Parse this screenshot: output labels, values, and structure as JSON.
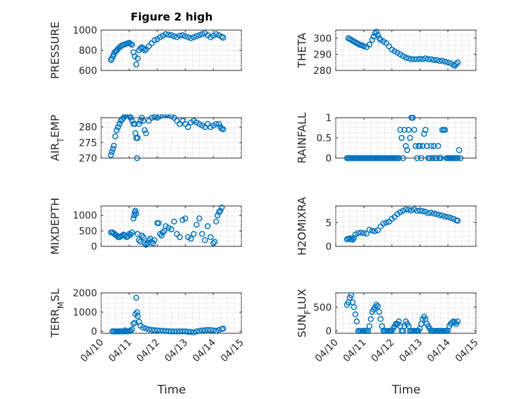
{
  "figure": {
    "title": "Figure 2 high",
    "xlabel": "Time",
    "x_tick_labels": [
      "04/10",
      "04/11",
      "04/12",
      "04/13",
      "04/14",
      "04/15"
    ],
    "marker_color": "#0072bd"
  },
  "chart_data": [
    {
      "type": "scatter",
      "ylabel": "PRESSURE",
      "ylim": [
        600,
        1000
      ],
      "yticks": [
        600,
        800,
        1000
      ],
      "xlim": [
        0,
        5
      ],
      "grid": true,
      "x": [
        0.35,
        0.38,
        0.42,
        0.45,
        0.48,
        0.52,
        0.56,
        0.6,
        0.65,
        0.7,
        0.75,
        0.8,
        0.85,
        0.9,
        0.95,
        1.0,
        1.05,
        1.1,
        1.15,
        1.2,
        1.25,
        1.3,
        1.35,
        1.4,
        1.45,
        1.5,
        1.55,
        1.6,
        1.7,
        1.8,
        1.9,
        2.0,
        2.1,
        2.2,
        2.3,
        2.4,
        2.5,
        2.6,
        2.7,
        2.8,
        2.9,
        3.0,
        3.1,
        3.2,
        3.3,
        3.4,
        3.5,
        3.6,
        3.7,
        3.8,
        3.9,
        4.0,
        4.1,
        4.2,
        4.3,
        4.35
      ],
      "y": [
        705,
        720,
        740,
        760,
        780,
        790,
        800,
        815,
        830,
        840,
        850,
        855,
        860,
        865,
        870,
        875,
        865,
        855,
        780,
        740,
        660,
        720,
        800,
        820,
        830,
        820,
        800,
        810,
        840,
        870,
        900,
        910,
        930,
        945,
        960,
        955,
        950,
        940,
        930,
        945,
        950,
        940,
        930,
        920,
        930,
        940,
        950,
        960,
        970,
        950,
        930,
        945,
        960,
        950,
        935,
        925
      ]
    },
    {
      "type": "scatter",
      "ylabel": "THETA",
      "ylim": [
        280,
        305
      ],
      "yticks": [
        280,
        290,
        300
      ],
      "xlim": [
        0,
        5
      ],
      "grid": true,
      "x": [
        0.45,
        0.5,
        0.55,
        0.6,
        0.65,
        0.7,
        0.75,
        0.8,
        0.85,
        0.9,
        0.95,
        1.0,
        1.1,
        1.2,
        1.3,
        1.35,
        1.4,
        1.45,
        1.5,
        1.55,
        1.6,
        1.7,
        1.8,
        1.9,
        2.0,
        2.1,
        2.2,
        2.3,
        2.4,
        2.5,
        2.6,
        2.7,
        2.8,
        2.9,
        3.0,
        3.1,
        3.2,
        3.3,
        3.4,
        3.5,
        3.6,
        3.7,
        3.8,
        3.9,
        4.0,
        4.1,
        4.2,
        4.25,
        4.3,
        4.35
      ],
      "y": [
        300,
        299.5,
        299,
        298.5,
        298,
        297.5,
        297,
        296.5,
        296,
        295.8,
        295.5,
        295,
        294.5,
        296,
        299,
        301,
        303,
        304,
        302,
        300,
        299,
        298,
        297,
        295,
        293,
        292,
        291,
        290,
        289,
        288,
        287.5,
        287,
        287,
        287,
        287.2,
        287,
        287.5,
        287,
        287,
        286.5,
        286.5,
        286,
        286,
        285.5,
        285,
        284.5,
        283.5,
        283,
        284,
        285
      ]
    },
    {
      "type": "scatter",
      "ylabel": "AIR_TEMP",
      "ylim": [
        270,
        283
      ],
      "yticks": [
        270,
        275,
        280
      ],
      "xlim": [
        0,
        5
      ],
      "grid": true,
      "x": [
        0.35,
        0.38,
        0.42,
        0.45,
        0.5,
        0.55,
        0.6,
        0.65,
        0.7,
        0.75,
        0.8,
        0.85,
        0.9,
        0.95,
        1.0,
        1.05,
        1.1,
        1.15,
        1.2,
        1.22,
        1.25,
        1.28,
        1.3,
        1.35,
        1.4,
        1.45,
        1.5,
        1.55,
        1.6,
        1.7,
        1.8,
        1.9,
        2.0,
        2.1,
        2.2,
        2.3,
        2.4,
        2.5,
        2.6,
        2.7,
        2.8,
        2.9,
        3.0,
        3.1,
        3.2,
        3.3,
        3.4,
        3.5,
        3.6,
        3.7,
        3.8,
        3.9,
        4.0,
        4.1,
        4.2,
        4.25,
        4.3,
        4.35
      ],
      "y": [
        271,
        272,
        273,
        274,
        277,
        279,
        280,
        281,
        282,
        282.5,
        283,
        283.5,
        283.8,
        284,
        283.5,
        283,
        282,
        281,
        281,
        278,
        276.5,
        270,
        276.5,
        281,
        282,
        283,
        282,
        279,
        278,
        282,
        283,
        283.2,
        283,
        283.5,
        283.8,
        284,
        284,
        283.5,
        283,
        282,
        281,
        282,
        281,
        280,
        281.5,
        282,
        281.5,
        281,
        280.5,
        280,
        281,
        280,
        280.5,
        281,
        281,
        280,
        279.5,
        279.3
      ]
    },
    {
      "type": "scatter",
      "ylabel": "RAINFALL",
      "ylim": [
        0,
        1
      ],
      "yticks": [
        0,
        0.5,
        1
      ],
      "xlim": [
        0,
        5
      ],
      "grid": true,
      "x": [
        0.4,
        0.45,
        0.5,
        0.55,
        0.6,
        0.65,
        0.7,
        0.75,
        0.8,
        0.85,
        0.9,
        0.95,
        1.0,
        1.05,
        1.1,
        1.15,
        1.2,
        1.25,
        1.3,
        1.35,
        1.4,
        1.45,
        1.5,
        1.55,
        1.6,
        1.65,
        1.7,
        1.75,
        1.8,
        1.85,
        1.9,
        1.95,
        2.0,
        2.05,
        2.1,
        2.15,
        2.2,
        2.25,
        2.3,
        2.35,
        2.4,
        2.45,
        2.5,
        2.55,
        2.6,
        2.65,
        2.7,
        2.75,
        2.8,
        2.85,
        2.9,
        2.95,
        3.0,
        3.05,
        3.1,
        3.15,
        3.2,
        3.25,
        3.3,
        3.35,
        3.4,
        3.45,
        3.5,
        3.55,
        3.6,
        3.65,
        3.7,
        3.75,
        3.8,
        3.85,
        3.9,
        3.95,
        4.0,
        4.05,
        4.1,
        4.15,
        4.2,
        4.25,
        4.3,
        4.35,
        4.4,
        4.45
      ],
      "y": [
        0,
        0,
        0,
        0,
        0,
        0,
        0,
        0,
        0,
        0,
        0,
        0,
        0,
        0,
        0,
        0,
        0,
        0,
        0,
        0,
        0,
        0,
        0,
        0,
        0,
        0,
        0,
        0,
        0,
        0,
        0,
        0,
        0,
        0,
        0,
        0,
        0,
        0,
        0.7,
        0.5,
        0,
        0.7,
        0.3,
        0.2,
        0.7,
        0.5,
        1,
        1,
        0.7,
        0.3,
        0,
        0.3,
        0.3,
        0,
        0.3,
        0.6,
        0.7,
        0.3,
        0,
        0,
        0.3,
        0,
        0.3,
        0,
        0,
        0.3,
        0,
        0,
        0.7,
        0.7,
        0.7,
        0,
        0,
        0,
        0,
        0,
        0,
        0,
        0,
        0,
        0.2,
        0
      ]
    },
    {
      "type": "scatter",
      "ylabel": "MIXDEPTH",
      "ylim": [
        0,
        1300
      ],
      "yticks": [
        0,
        500,
        1000
      ],
      "xlim": [
        0,
        5
      ],
      "grid": true,
      "x": [
        0.35,
        0.4,
        0.45,
        0.5,
        0.55,
        0.6,
        0.65,
        0.7,
        0.75,
        0.8,
        0.85,
        0.9,
        0.95,
        1.0,
        1.05,
        1.1,
        1.15,
        1.18,
        1.2,
        1.22,
        1.25,
        1.3,
        1.35,
        1.4,
        1.45,
        1.5,
        1.55,
        1.6,
        1.65,
        1.7,
        1.75,
        1.8,
        1.85,
        1.9,
        2.0,
        2.05,
        2.1,
        2.15,
        2.2,
        2.25,
        2.3,
        2.4,
        2.5,
        2.6,
        2.7,
        2.8,
        2.9,
        3.0,
        3.1,
        3.2,
        3.3,
        3.4,
        3.5,
        3.6,
        3.7,
        3.8,
        3.9,
        4.0,
        4.05,
        4.1,
        4.15,
        4.2,
        4.25,
        4.3
      ],
      "y": [
        450,
        450,
        420,
        380,
        350,
        300,
        300,
        320,
        350,
        380,
        350,
        300,
        320,
        400,
        380,
        450,
        900,
        1000,
        1100,
        1150,
        1050,
        400,
        200,
        150,
        350,
        300,
        100,
        50,
        100,
        200,
        250,
        150,
        100,
        200,
        750,
        750,
        400,
        350,
        450,
        500,
        650,
        600,
        550,
        800,
        400,
        300,
        850,
        900,
        300,
        250,
        400,
        700,
        900,
        400,
        200,
        650,
        300,
        100,
        150,
        800,
        1000,
        1100,
        1150,
        1250
      ]
    },
    {
      "type": "scatter",
      "ylabel": "H2OMIXRA",
      "ylim": [
        0,
        8.5
      ],
      "yticks": [
        0,
        5
      ],
      "xlim": [
        0,
        5
      ],
      "grid": true,
      "x": [
        0.4,
        0.45,
        0.5,
        0.55,
        0.6,
        0.65,
        0.7,
        0.8,
        0.9,
        1.0,
        1.1,
        1.2,
        1.3,
        1.4,
        1.5,
        1.6,
        1.7,
        1.8,
        1.9,
        2.0,
        2.1,
        2.2,
        2.3,
        2.4,
        2.5,
        2.6,
        2.7,
        2.8,
        2.9,
        3.0,
        3.1,
        3.2,
        3.3,
        3.4,
        3.5,
        3.6,
        3.7,
        3.8,
        3.9,
        4.0,
        4.1,
        4.2,
        4.3,
        4.35
      ],
      "y": [
        1.5,
        1.6,
        1.7,
        1.5,
        1.4,
        1.8,
        2.5,
        2.8,
        2.9,
        2.8,
        2.7,
        3.5,
        3.3,
        3.2,
        3.4,
        4.2,
        4.8,
        5.0,
        5.2,
        5.8,
        6.2,
        6.8,
        7.2,
        7.5,
        7.8,
        7.7,
        7.6,
        7.8,
        7.5,
        7.5,
        7.4,
        7.3,
        7.0,
        7.1,
        6.9,
        6.8,
        6.6,
        6.5,
        6.3,
        6.2,
        6.0,
        5.8,
        5.5,
        5.4
      ]
    },
    {
      "type": "scatter",
      "ylabel": "TERR_MSL",
      "ylim": [
        -100,
        2000
      ],
      "yticks": [
        0,
        1000,
        2000
      ],
      "xlim": [
        0,
        5
      ],
      "grid": true,
      "x": [
        0.4,
        0.45,
        0.5,
        0.55,
        0.6,
        0.65,
        0.7,
        0.75,
        0.8,
        0.85,
        0.9,
        0.95,
        1.0,
        1.05,
        1.1,
        1.15,
        1.2,
        1.22,
        1.25,
        1.28,
        1.3,
        1.35,
        1.4,
        1.5,
        1.6,
        1.7,
        1.8,
        1.9,
        2.0,
        2.1,
        2.2,
        2.3,
        2.4,
        2.5,
        2.6,
        2.7,
        2.8,
        2.9,
        3.0,
        3.1,
        3.2,
        3.3,
        3.4,
        3.5,
        3.6,
        3.7,
        3.8,
        3.9,
        4.0,
        4.1,
        4.2,
        4.3,
        4.35
      ],
      "y": [
        0,
        0,
        0,
        0,
        0,
        0,
        0,
        0,
        0,
        50,
        0,
        0,
        20,
        30,
        100,
        400,
        450,
        900,
        1750,
        1000,
        800,
        500,
        300,
        200,
        150,
        100,
        80,
        60,
        50,
        40,
        30,
        20,
        10,
        0,
        0,
        0,
        0,
        0,
        0,
        -20,
        -30,
        -50,
        0,
        20,
        50,
        60,
        80,
        70,
        50,
        30,
        80,
        120,
        150
      ]
    },
    {
      "type": "scatter",
      "ylabel": "SUN_FLUX",
      "ylim": [
        -50,
        800
      ],
      "yticks": [
        0,
        500
      ],
      "xlim": [
        0,
        5
      ],
      "grid": true,
      "x": [
        0.4,
        0.45,
        0.5,
        0.55,
        0.6,
        0.65,
        0.7,
        0.75,
        0.8,
        0.85,
        0.9,
        0.95,
        1.0,
        1.05,
        1.1,
        1.15,
        1.2,
        1.25,
        1.3,
        1.35,
        1.4,
        1.45,
        1.5,
        1.55,
        1.6,
        1.65,
        1.7,
        1.75,
        1.8,
        1.85,
        1.9,
        1.95,
        2.0,
        2.05,
        2.1,
        2.15,
        2.2,
        2.25,
        2.3,
        2.35,
        2.4,
        2.45,
        2.5,
        2.55,
        2.6,
        2.65,
        2.7,
        2.75,
        2.8,
        2.85,
        2.9,
        2.95,
        3.0,
        3.05,
        3.1,
        3.15,
        3.2,
        3.25,
        3.3,
        3.35,
        3.4,
        3.45,
        3.5,
        3.55,
        3.6,
        3.65,
        3.7,
        3.75,
        3.8,
        3.85,
        3.9,
        3.95,
        4.0,
        4.05,
        4.1,
        4.15,
        4.2,
        4.25,
        4.3,
        4.35
      ],
      "y": [
        550,
        600,
        700,
        750,
        600,
        500,
        350,
        200,
        0,
        0,
        0,
        0,
        0,
        0,
        0,
        0,
        100,
        250,
        400,
        450,
        500,
        550,
        520,
        400,
        250,
        100,
        0,
        0,
        0,
        0,
        0,
        0,
        0,
        50,
        100,
        150,
        150,
        200,
        100,
        0,
        0,
        100,
        200,
        150,
        100,
        0,
        0,
        0,
        0,
        0,
        0,
        0,
        50,
        150,
        250,
        300,
        250,
        150,
        100,
        50,
        0,
        0,
        0,
        0,
        0,
        0,
        0,
        0,
        0,
        0,
        0,
        0,
        0,
        100,
        150,
        180,
        200,
        180,
        150,
        200
      ]
    }
  ]
}
